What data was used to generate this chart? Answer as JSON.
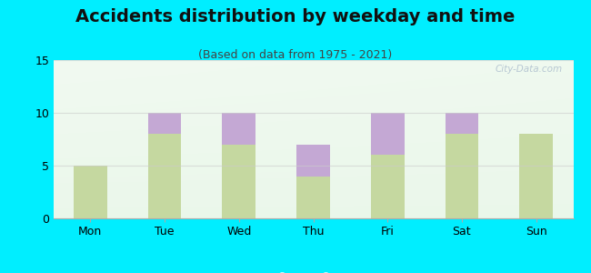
{
  "title": "Accidents distribution by weekday and time",
  "subtitle": "(Based on data from 1975 - 2021)",
  "categories": [
    "Mon",
    "Tue",
    "Wed",
    "Thu",
    "Fri",
    "Sat",
    "Sun"
  ],
  "pm_values": [
    5,
    8,
    7,
    4,
    6,
    8,
    8
  ],
  "am_values": [
    0,
    2,
    3,
    3,
    4,
    2,
    0
  ],
  "am_color": "#c4a8d4",
  "pm_color": "#c5d8a0",
  "background_color": "#00eeff",
  "ylim": [
    0,
    15
  ],
  "yticks": [
    0,
    5,
    10,
    15
  ],
  "title_fontsize": 14,
  "subtitle_fontsize": 9,
  "tick_fontsize": 9,
  "legend_fontsize": 9,
  "watermark_text": "City-Data.com",
  "bar_width": 0.45,
  "grid_color": "#cccccc",
  "grid_alpha": 0.6
}
